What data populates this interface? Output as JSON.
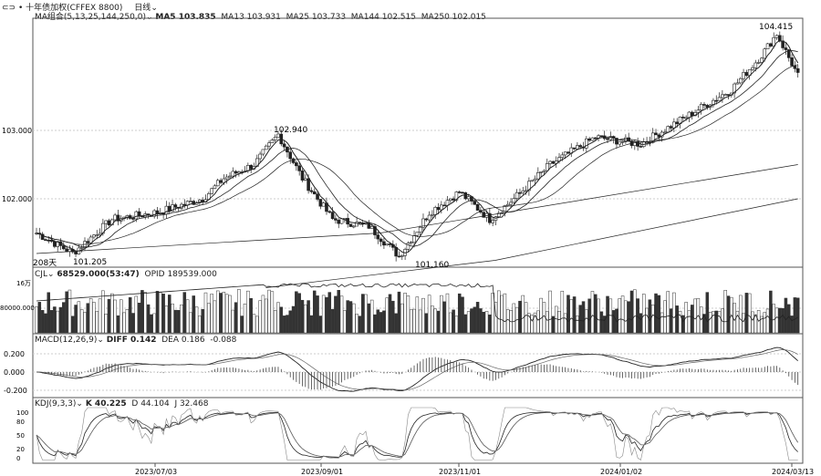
{
  "header": {
    "title": "十年债加权(CFFEX 8800)",
    "period": "日线"
  },
  "ma_legend": {
    "label": "MA组合(5,13,25,144,250,0)",
    "ma5": "MA5 103.835",
    "ma13": "MA13 103.931",
    "ma25": "MA25 103.733",
    "ma144": "MA144 102.515",
    "ma250": "MA250 102.015"
  },
  "vol_legend": {
    "label": "CJL",
    "vol": "68529.000(53:47)",
    "opid": "OPID 189539.000"
  },
  "macd_legend": {
    "label": "MACD(12,26,9)",
    "diff": "DIFF 0.142",
    "dea": "DEA 0.186",
    "macd": "-0.088"
  },
  "kdj_legend": {
    "label": "KDJ(9,3,3)",
    "k": "K 40.225",
    "d": "D 44.104",
    "j": "J 32.468"
  },
  "chart_data": {
    "type": "candlestick",
    "bars": 175,
    "price_anchors": [
      [
        0,
        101.5
      ],
      [
        12,
        101.205
      ],
      [
        25,
        101.7
      ],
      [
        40,
        101.8
      ],
      [
        55,
        102.0
      ],
      [
        62,
        102.3
      ],
      [
        72,
        102.5
      ],
      [
        80,
        102.94
      ],
      [
        88,
        102.3
      ],
      [
        98,
        101.7
      ],
      [
        110,
        101.6
      ],
      [
        120,
        101.16
      ],
      [
        130,
        101.8
      ],
      [
        140,
        102.1
      ],
      [
        150,
        101.7
      ],
      [
        158,
        102.0
      ],
      [
        170,
        102.5
      ]
    ],
    "price_anchors2": [
      [
        170,
        102.5
      ],
      [
        185,
        102.9
      ],
      [
        200,
        102.8
      ],
      [
        215,
        103.2
      ],
      [
        230,
        103.6
      ],
      [
        240,
        104.1
      ],
      [
        245,
        104.415
      ],
      [
        252,
        103.8
      ]
    ],
    "price_ticks": [
      "103.000",
      "102.000"
    ],
    "annotations": [
      "104.415",
      "102.940",
      "101.205",
      "101.160",
      "208天"
    ],
    "vol_ticks": [
      "16万",
      "80000.000"
    ],
    "macd_ticks": [
      "0.200",
      "0.000",
      "-0.200"
    ],
    "kdj_ticks": [
      "100",
      "80",
      "50",
      "20",
      "0"
    ],
    "dates": [
      "2023/07/03",
      "2023/09/01",
      "2023/11/01",
      "2024/01/02",
      "2024/03/13"
    ]
  }
}
